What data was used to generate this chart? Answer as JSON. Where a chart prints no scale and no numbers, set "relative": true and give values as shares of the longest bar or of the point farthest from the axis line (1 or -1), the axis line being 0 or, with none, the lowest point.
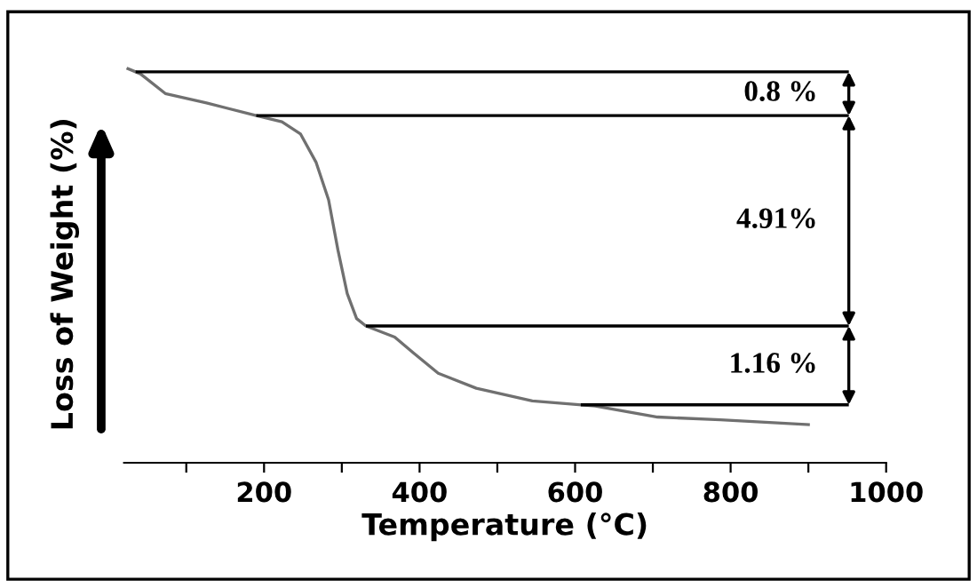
{
  "chart_data": {
    "type": "line",
    "relative": true,
    "xlabel": "Temperature (°C)",
    "ylabel": "Loss of Weight (%)",
    "color": "#707070",
    "x": [
      25,
      41,
      73,
      126,
      190,
      223,
      247,
      267,
      283,
      295,
      307,
      319,
      331,
      368,
      392,
      424,
      473,
      545,
      626,
      706,
      787,
      900
    ],
    "values": [
      1.0,
      0.987,
      0.937,
      0.913,
      0.881,
      0.865,
      0.834,
      0.762,
      0.667,
      0.54,
      0.429,
      0.366,
      0.347,
      0.319,
      0.279,
      0.227,
      0.189,
      0.157,
      0.144,
      0.116,
      0.109,
      0.097
    ],
    "xlim": [
      20,
      1000
    ],
    "xticks": [
      {
        "value": 100,
        "label": null
      },
      200,
      {
        "value": 300,
        "label": null
      },
      400,
      {
        "value": 500,
        "label": null
      },
      600,
      {
        "value": 700,
        "label": null
      },
      800,
      {
        "value": 900,
        "label": null
      },
      1000
    ],
    "ref_lines": [
      {
        "axis": "y",
        "value": 0.992,
        "color": "#000000"
      },
      {
        "axis": "y",
        "value": 0.881,
        "color": "#000000"
      },
      {
        "axis": "y",
        "value": 0.347,
        "color": "#000000"
      },
      {
        "axis": "y",
        "value": 0.147,
        "color": "#000000"
      }
    ],
    "annotations": [
      "0.8 %",
      "4.91%",
      "1.16 %"
    ],
    "grid": false,
    "legend": false,
    "marker": "none",
    "line_style": "solid"
  }
}
